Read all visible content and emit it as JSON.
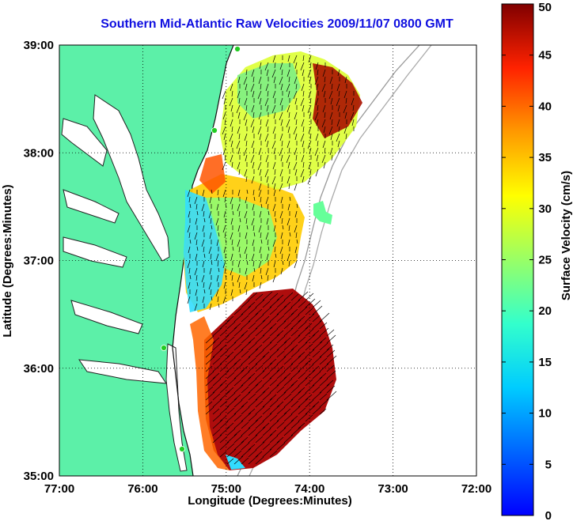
{
  "title": "Southern Mid-Atlantic Raw Velocities 2009/11/07 0800 GMT",
  "axes": {
    "xlabel": "Longitude (Degrees:Minutes)",
    "ylabel": "Latitude (Degrees:Minutes)",
    "x_ticks": [
      "77:00",
      "76:00",
      "75:00",
      "74:00",
      "73:00",
      "72:00"
    ],
    "y_ticks": [
      "39:00",
      "38:00",
      "37:00",
      "36:00",
      "35:00"
    ],
    "xlim": [
      -77,
      -72
    ],
    "ylim": [
      35,
      39
    ],
    "grid": true
  },
  "colorbar": {
    "label": "Surface Velocity (cm/s)",
    "ticks": [
      "50",
      "45",
      "40",
      "35",
      "30",
      "25",
      "20",
      "15",
      "10",
      "5",
      "0"
    ],
    "range": [
      0,
      50
    ],
    "colormap": "jet"
  },
  "colors": {
    "land": "#5cf0a8",
    "title": "#1010e0",
    "stations": "#22cc22"
  }
}
